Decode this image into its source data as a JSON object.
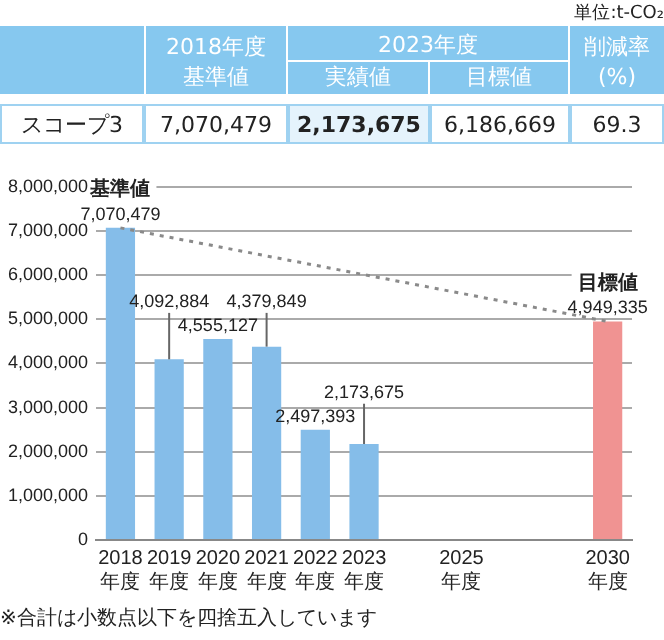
{
  "chart_data": [
    {
      "type": "other",
      "annotations": [
        "単位:t-CO₂",
        "2018年度",
        "基準値",
        "2023年度",
        "実績値",
        "目標値",
        "削減率",
        "(%)",
        "スコープ3",
        "7,070,479",
        "2,173,675",
        "6,186,669",
        "69.3"
      ]
    },
    {
      "type": "bar",
      "categories": [
        "2018年度",
        "2019年度",
        "2020年度",
        "2021年度",
        "2022年度",
        "2023年度",
        null,
        "2025年度",
        null,
        null,
        "2030年度"
      ],
      "series": [
        {
          "type": "bar",
          "colors": [
            "#85bde9",
            "#85bde9",
            "#85bde9",
            "#85bde9",
            "#85bde9",
            "#85bde9",
            "#85bde9",
            "#85bde9",
            "#85bde9",
            "#85bde9",
            "#f09392"
          ],
          "values": [
            7070479,
            4092884,
            4555127,
            4379849,
            2497393,
            2173675,
            null,
            null,
            null,
            null,
            4949335
          ],
          "value_labels": [
            "7,070,479",
            "4,092,884",
            "4,555,127",
            "4,379,849",
            "2,497,393",
            "2,173,675",
            null,
            null,
            null,
            null,
            "4,949,335"
          ]
        },
        {
          "type": "line",
          "x": [
            "2018年度",
            "2030年度"
          ],
          "values": [
            7070000,
            4950000
          ],
          "color": "#8a8a8a",
          "line_style": "dotted",
          "marker": "none"
        }
      ],
      "ylim": [
        0,
        8000000
      ],
      "yticks": [
        {
          "value": 0,
          "label": "0"
        },
        {
          "value": 1000000,
          "label": "1,000,000"
        },
        {
          "value": 2000000,
          "label": "2,000,000"
        },
        {
          "value": 3000000,
          "label": "3,000,000"
        },
        {
          "value": 4000000,
          "label": "4,000,000"
        },
        {
          "value": 5000000,
          "label": "5,000,000"
        },
        {
          "value": 6000000,
          "label": "6,000,000"
        },
        {
          "value": 7000000,
          "label": "7,000,000"
        },
        {
          "value": 8000000,
          "label": "8,000,000"
        }
      ],
      "grid": "y",
      "legend": false,
      "annotations": [
        {
          "text": "基準値",
          "x": "2018年度",
          "y": 7070479
        },
        {
          "text": "目標値",
          "x": "2030年度",
          "y": 4949335
        },
        "※合計は小数点以下を四捨五入しています"
      ]
    }
  ]
}
